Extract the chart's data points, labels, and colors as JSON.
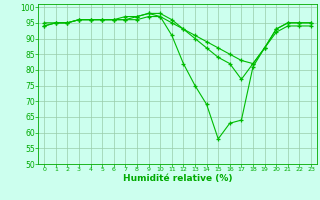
{
  "x": [
    0,
    1,
    2,
    3,
    4,
    5,
    6,
    7,
    8,
    9,
    10,
    11,
    12,
    13,
    14,
    15,
    16,
    17,
    18,
    19,
    20,
    21,
    22,
    23
  ],
  "line1": [
    94,
    95,
    95,
    96,
    96,
    96,
    96,
    96,
    97,
    98,
    97,
    91,
    82,
    75,
    69,
    58,
    63,
    64,
    81,
    87,
    93,
    95,
    95,
    95
  ],
  "line2": [
    95,
    95,
    95,
    96,
    96,
    96,
    96,
    97,
    97,
    98,
    98,
    96,
    93,
    90,
    87,
    84,
    82,
    77,
    82,
    87,
    93,
    95,
    95,
    95
  ],
  "line3": [
    94,
    95,
    95,
    96,
    96,
    96,
    96,
    96,
    96,
    97,
    97,
    95,
    93,
    91,
    89,
    87,
    85,
    83,
    82,
    87,
    92,
    94,
    94,
    94
  ],
  "line_color": "#00bb00",
  "marker": "+",
  "bg_color": "#ccffee",
  "grid_color": "#99ccaa",
  "xlabel": "Humidité relative (%)",
  "ylim": [
    50,
    101
  ],
  "xlim": [
    -0.5,
    23.5
  ],
  "yticks": [
    50,
    55,
    60,
    65,
    70,
    75,
    80,
    85,
    90,
    95,
    100
  ],
  "xticks": [
    0,
    1,
    2,
    3,
    4,
    5,
    6,
    7,
    8,
    9,
    10,
    11,
    12,
    13,
    14,
    15,
    16,
    17,
    18,
    19,
    20,
    21,
    22,
    23
  ],
  "xlabel_color": "#00aa00",
  "tick_color": "#00aa00"
}
